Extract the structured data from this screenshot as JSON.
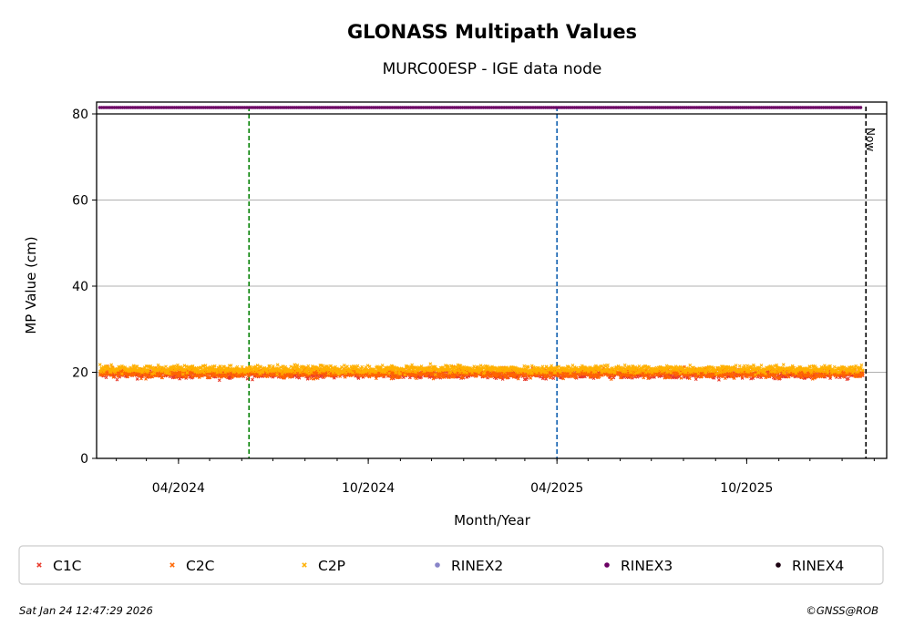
{
  "chart_data": {
    "type": "scatter",
    "title": "GLONASS Multipath Values",
    "subtitle": "MURC00ESP - IGE data node",
    "xlabel": "Month/Year",
    "ylabel": "MP Value (cm)",
    "x_range": [
      "2024-01-13",
      "2026-02-13"
    ],
    "ylim": [
      0,
      80
    ],
    "y_ticks": [
      0,
      20,
      40,
      60,
      80
    ],
    "x_ticks": [
      {
        "date": "2024-04-01",
        "label": "04/2024"
      },
      {
        "date": "2024-10-01",
        "label": "10/2024"
      },
      {
        "date": "2025-04-01",
        "label": "04/2025"
      },
      {
        "date": "2025-10-01",
        "label": "10/2025"
      }
    ],
    "grid": "horizontal",
    "series": [
      {
        "name": "C1C",
        "marker": "x",
        "color": "#e8392a",
        "mean": 19.6,
        "spread": 1.2,
        "start": "2024-01-16",
        "end": "2026-01-20"
      },
      {
        "name": "C2C",
        "marker": "x",
        "color": "#ff6600",
        "mean": 19.8,
        "spread": 1.3,
        "start": "2024-01-16",
        "end": "2026-01-20"
      },
      {
        "name": "C2P",
        "marker": "x",
        "color": "#ffb000",
        "mean": 20.7,
        "spread": 1.1,
        "start": "2024-01-16",
        "end": "2026-01-20"
      },
      {
        "name": "RINEX2",
        "marker": "o",
        "color": "#8884c8",
        "values": []
      },
      {
        "name": "RINEX3",
        "marker": "o",
        "color": "#6b0063",
        "constant": 81.5,
        "start": "2024-01-16",
        "end": "2026-01-20"
      },
      {
        "name": "RINEX4",
        "marker": "o",
        "color": "#1a0010",
        "values": []
      }
    ],
    "vertical_lines": [
      {
        "date": "2024-06-08",
        "color": "#008000",
        "style": "dashed"
      },
      {
        "date": "2025-04-01",
        "color": "#1060b0",
        "style": "dashed"
      },
      {
        "date": "2026-01-24",
        "color": "#000000",
        "style": "dashed",
        "label": "Now"
      }
    ],
    "legend_position": "bottom"
  },
  "footer": {
    "timestamp": "Sat Jan 24 12:47:29 2026",
    "credit": "©GNSS@ROB"
  }
}
